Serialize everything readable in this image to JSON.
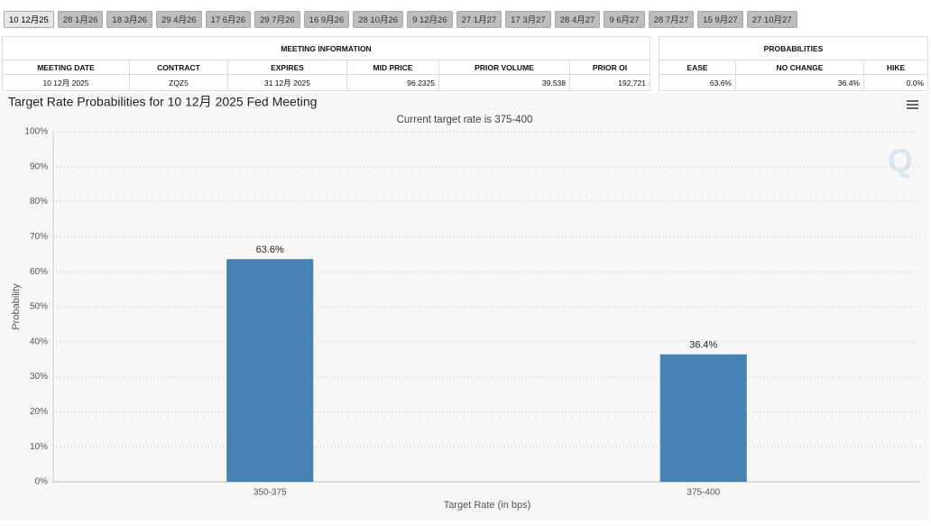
{
  "tabs": [
    "10 12月25",
    "28 1月26",
    "18 3月26",
    "29 4月26",
    "17 6月26",
    "29 7月26",
    "16 9月26",
    "28 10月26",
    "9 12月26",
    "27 1月27",
    "17 3月27",
    "28 4月27",
    "9 6月27",
    "28 7月27",
    "15 9月27",
    "27 10月27"
  ],
  "meeting_information": {
    "title": "MEETING INFORMATION",
    "headers": [
      "MEETING DATE",
      "CONTRACT",
      "EXPIRES",
      "MID PRICE",
      "PRIOR VOLUME",
      "PRIOR OI"
    ],
    "row": [
      "10 12月 2025",
      "ZQZ5",
      "31 12月 2025",
      "96.2325",
      "39,538",
      "192,721"
    ]
  },
  "probabilities": {
    "title": "PROBABILITIES",
    "headers": [
      "EASE",
      "NO CHANGE",
      "HIKE"
    ],
    "row": [
      "63.6%",
      "36.4%",
      "0.0%"
    ]
  },
  "chart_data": {
    "type": "bar",
    "title": "Target Rate Probabilities for 10 12月 2025 Fed Meeting",
    "subtitle": "Current target rate is 375-400",
    "x_label": "Target Rate (in bps)",
    "y_label": "Probability",
    "categories": [
      "350-375",
      "375-400"
    ],
    "values": [
      63.6,
      36.4
    ],
    "value_labels": [
      "63.6%",
      "36.4%"
    ],
    "color": "#4682b4",
    "ylim": [
      0,
      100
    ],
    "yticks": [
      {
        "value": 0,
        "label": "0%"
      },
      {
        "value": 10,
        "label": "10%"
      },
      {
        "value": 20,
        "label": "20%"
      },
      {
        "value": 30,
        "label": "30%"
      },
      {
        "value": 40,
        "label": "40%"
      },
      {
        "value": 50,
        "label": "50%"
      },
      {
        "value": 60,
        "label": "60%"
      },
      {
        "value": 70,
        "label": "70%"
      },
      {
        "value": 80,
        "label": "80%"
      },
      {
        "value": 90,
        "label": "90%"
      },
      {
        "value": 100,
        "label": "100%"
      }
    ],
    "grid": true
  }
}
